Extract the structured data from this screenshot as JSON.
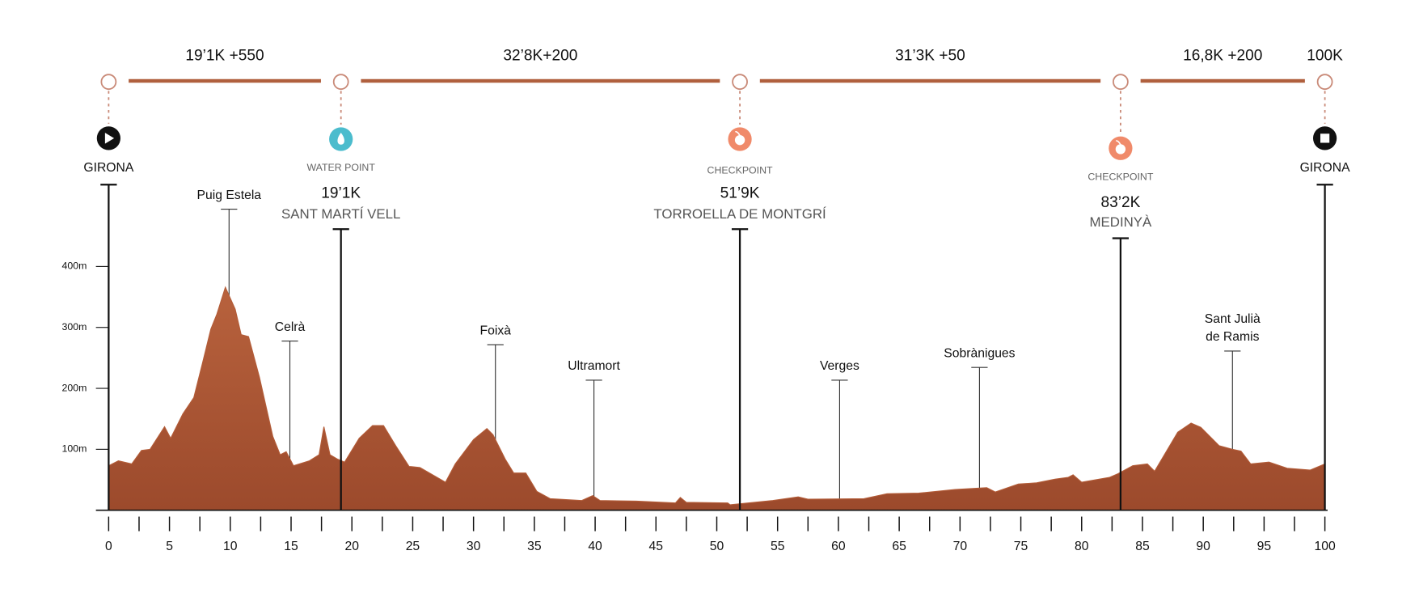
{
  "chart_data": {
    "type": "area",
    "color": "#b35c38",
    "x": [
      0,
      0.8,
      1.9,
      2.7,
      3.4,
      4.6,
      5.1,
      6.1,
      7.0,
      7.7,
      8.4,
      8.9,
      9.6,
      10.4,
      10.9,
      11.5,
      12.4,
      13.5,
      14.1,
      14.6,
      15.2,
      16.5,
      17.3,
      17.7,
      18.2,
      18.8,
      19.4,
      20.6,
      21.7,
      22.6,
      23.6,
      24.7,
      25.6,
      27.7,
      28.5,
      30.0,
      31.1,
      31.6,
      32.6,
      33.3,
      34.3,
      35.2,
      36.3,
      38.9,
      39.8,
      40.4,
      43.4,
      46.6,
      47.0,
      47.5,
      50.9,
      51.1,
      54.6,
      56.7,
      57.5,
      62.1,
      64.0,
      66.6,
      69.6,
      72.2,
      72.9,
      74.8,
      76.3,
      77.8,
      78.9,
      79.3,
      80.0,
      82.3,
      83.0,
      84.2,
      85.4,
      86.0,
      86.8,
      87.9,
      89.0,
      89.8,
      91.3,
      92.4,
      93.1,
      93.9,
      95.4,
      96.9,
      98.8,
      100
    ],
    "values": [
      73,
      81,
      76,
      98,
      100,
      137,
      118,
      158,
      185,
      240,
      297,
      322,
      366,
      330,
      288,
      285,
      218,
      121,
      91,
      96,
      73,
      81,
      91,
      137,
      91,
      84,
      79,
      118,
      139,
      139,
      106,
      72,
      70,
      46,
      76,
      116,
      134,
      124,
      84,
      61,
      61,
      31,
      19,
      16,
      24,
      16,
      15,
      12,
      21,
      13,
      12,
      9,
      16,
      22,
      18,
      19,
      27,
      28,
      34,
      37,
      30,
      43,
      45,
      51,
      54,
      58,
      46,
      54,
      60,
      73,
      76,
      64,
      91,
      128,
      143,
      136,
      106,
      100,
      97,
      76,
      79,
      69,
      66,
      76
    ],
    "xlim": [
      0,
      100
    ],
    "xticks": [
      0,
      5,
      10,
      15,
      20,
      25,
      30,
      35,
      40,
      45,
      50,
      55,
      60,
      65,
      70,
      75,
      80,
      85,
      90,
      95,
      100
    ],
    "xminor_ticks": [
      2.5,
      7.5,
      12.5,
      17.5,
      22.5,
      27.5,
      32.5,
      37.5,
      42.5,
      47.5,
      52.5,
      57.5,
      62.5,
      67.5,
      72.5,
      77.5,
      82.5,
      87.5,
      92.5,
      97.5
    ],
    "ylim": [
      0,
      500
    ],
    "yticks": [
      {
        "value": 100,
        "label": "100m"
      },
      {
        "value": 200,
        "label": "200m"
      },
      {
        "value": 300,
        "label": "300m"
      },
      {
        "value": 400,
        "label": "400m"
      }
    ],
    "places": [
      {
        "name": "Puig Estela",
        "km": 9.9
      },
      {
        "name": "Celrà",
        "km": 14.9
      },
      {
        "name": "Foixà",
        "km": 31.8
      },
      {
        "name": "Ultramort",
        "km": 39.9
      },
      {
        "name": "Verges",
        "km": 60.1
      },
      {
        "name": "Sobrànigues",
        "km": 71.6
      },
      {
        "name": [
          "Sant Julià",
          "de Ramis"
        ],
        "km": 92.4
      }
    ],
    "stations": [
      {
        "km": 0,
        "kind": "start",
        "name": "GIRONA"
      },
      {
        "km": 19.1,
        "kind": "water",
        "label": "WATER POINT",
        "distance": "19’1K",
        "name": "SANT MARTÍ VELL"
      },
      {
        "km": 51.9,
        "kind": "checkpoint",
        "label": "CHECKPOINT",
        "distance": "51’9K",
        "name": "TORROELLA DE MONTGRÍ"
      },
      {
        "km": 83.2,
        "kind": "checkpoint",
        "label": "CHECKPOINT",
        "distance": "83’2K",
        "name": "MEDINYÀ"
      },
      {
        "km": 100,
        "kind": "finish",
        "name": "GIRONA"
      }
    ],
    "segments": [
      "19’1K +550",
      "32’8K+200",
      "31’3K +50",
      "16,8K +200"
    ],
    "total": "100K"
  }
}
